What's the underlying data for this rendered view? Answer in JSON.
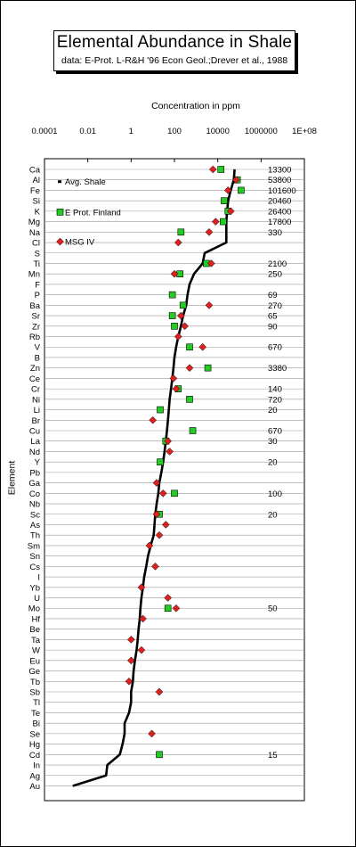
{
  "header": {
    "title": "Elemental  Abundance in Shale",
    "subtitle": "data:  E-Prot. L-R&H '96 Econ Geol.;Drever et al., 1988"
  },
  "chart_data": {
    "type": "scatter",
    "title": "Elemental  Abundance in Shale",
    "subtitle": "data:  E-Prot. L-R&H '96 Econ Geol.;Drever et al., 1988",
    "xlabel": "Concentration in ppm",
    "ylabel": "Element",
    "x_scale": "log",
    "xlim": [
      0.0001,
      100000000
    ],
    "x_ticks": [
      "0.0001",
      "0.01",
      "1",
      "100",
      "10000",
      "1000000",
      "1E+08"
    ],
    "grid": true,
    "legend_position": "top-left",
    "categories": [
      "Ca",
      "Al",
      "Fe",
      "Si",
      "K",
      "Mg",
      "Na",
      "Cl",
      "S",
      "Ti",
      "Mn",
      "F",
      "P",
      "Ba",
      "Sr",
      "Zr",
      "Rb",
      "V",
      "B",
      "Zn",
      "Ce",
      "Cr",
      "Ni",
      "Li",
      "Br",
      "Cu",
      "La",
      "Nd",
      "Y",
      "Pb",
      "Ga",
      "Co",
      "Nb",
      "Sc",
      "As",
      "Th",
      "Sm",
      "Sn",
      "Cs",
      "I",
      "Yb",
      "U",
      "Mo",
      "Hf",
      "Be",
      "Ta",
      "W",
      "Eu",
      "Ge",
      "Tb",
      "Sb",
      "Tl",
      "Te",
      "Bi",
      "Se",
      "Hg",
      "Cd",
      "In",
      "Ag",
      "Au"
    ],
    "series": [
      {
        "name": "Avg. Shale",
        "marker": "line",
        "color": "#000000",
        "points": [
          [
            "Ca",
            60000
          ],
          [
            "Al",
            55000
          ],
          [
            "Fe",
            40000
          ],
          [
            "Si",
            30000
          ],
          [
            "K",
            27000
          ],
          [
            "Mg",
            25000
          ],
          [
            "Na",
            25000
          ],
          [
            "Cl",
            25000
          ],
          [
            "S",
            2500
          ],
          [
            "Ti",
            2000
          ],
          [
            "Mn",
            800
          ],
          [
            "F",
            500
          ],
          [
            "P",
            400
          ],
          [
            "Ba",
            350
          ],
          [
            "Sr",
            250
          ],
          [
            "Zr",
            200
          ],
          [
            "Rb",
            150
          ],
          [
            "V",
            120
          ],
          [
            "B",
            100
          ],
          [
            "Zn",
            90
          ],
          [
            "Ce",
            80
          ],
          [
            "Cr",
            70
          ],
          [
            "Ni",
            60
          ],
          [
            "Li",
            55
          ],
          [
            "Br",
            50
          ],
          [
            "Cu",
            45
          ],
          [
            "La",
            40
          ],
          [
            "Nd",
            35
          ],
          [
            "Y",
            30
          ],
          [
            "Pb",
            25
          ],
          [
            "Ga",
            20
          ],
          [
            "Co",
            18
          ],
          [
            "Nb",
            15
          ],
          [
            "Sc",
            13
          ],
          [
            "As",
            12
          ],
          [
            "Th",
            11
          ],
          [
            "Sm",
            8
          ],
          [
            "Sn",
            6
          ],
          [
            "Cs",
            5
          ],
          [
            "I",
            4
          ],
          [
            "Yb",
            3.5
          ],
          [
            "U",
            3
          ],
          [
            "Mo",
            2.7
          ],
          [
            "Hf",
            2.5
          ],
          [
            "Be",
            2.2
          ],
          [
            "Ta",
            2
          ],
          [
            "W",
            1.8
          ],
          [
            "Eu",
            1.5
          ],
          [
            "Ge",
            1.3
          ],
          [
            "Tb",
            1.2
          ],
          [
            "Sb",
            1
          ],
          [
            "Tl",
            1
          ],
          [
            "Te",
            0.8
          ],
          [
            "Bi",
            0.5
          ],
          [
            "Se",
            0.5
          ],
          [
            "Hg",
            0.4
          ],
          [
            "Cd",
            0.3
          ],
          [
            "In",
            0.08
          ],
          [
            "Ag",
            0.07
          ],
          [
            "Au",
            0.002
          ]
        ]
      },
      {
        "name": "E Prot. Finland",
        "marker": "square",
        "color": "#22cc22",
        "points": [
          [
            "Ca",
            14000
          ],
          [
            "Al",
            80000
          ],
          [
            "Fe",
            120000
          ],
          [
            "Si",
            20000
          ],
          [
            "K",
            30000
          ],
          [
            "Mg",
            18000
          ],
          [
            "Na",
            200
          ],
          [
            "Ti",
            3000
          ],
          [
            "Mn",
            180
          ],
          [
            "P",
            80
          ],
          [
            "Ba",
            250
          ],
          [
            "Sr",
            80
          ],
          [
            "Zr",
            100
          ],
          [
            "V",
            500
          ],
          [
            "Zn",
            3500
          ],
          [
            "Cr",
            150
          ],
          [
            "Ni",
            500
          ],
          [
            "Li",
            22
          ],
          [
            "Cu",
            700
          ],
          [
            "La",
            40
          ],
          [
            "Y",
            22
          ],
          [
            "Co",
            100
          ],
          [
            "Sc",
            20
          ],
          [
            "Mo",
            50
          ],
          [
            "Cd",
            20
          ]
        ]
      },
      {
        "name": "MSG IV",
        "marker": "circle",
        "color": "#e02020",
        "points": [
          [
            "Ca",
            6000
          ],
          [
            "Al",
            70000
          ],
          [
            "Fe",
            30000
          ],
          [
            "K",
            40000
          ],
          [
            "Mg",
            8000
          ],
          [
            "Na",
            4000
          ],
          [
            "Cl",
            150
          ],
          [
            "Ti",
            5000
          ],
          [
            "Mn",
            100
          ],
          [
            "Ba",
            4000
          ],
          [
            "Sr",
            200
          ],
          [
            "Zr",
            300
          ],
          [
            "Rb",
            150
          ],
          [
            "V",
            2000
          ],
          [
            "Zn",
            500
          ],
          [
            "Ce",
            90
          ],
          [
            "Cr",
            120
          ],
          [
            "Br",
            10
          ],
          [
            "La",
            50
          ],
          [
            "Nd",
            60
          ],
          [
            "Ga",
            15
          ],
          [
            "Co",
            30
          ],
          [
            "Sc",
            15
          ],
          [
            "As",
            40
          ],
          [
            "Th",
            20
          ],
          [
            "Sm",
            7
          ],
          [
            "Cs",
            13
          ],
          [
            "Yb",
            3
          ],
          [
            "U",
            50
          ],
          [
            "Mo",
            120
          ],
          [
            "Hf",
            3.5
          ],
          [
            "Ta",
            1
          ],
          [
            "W",
            3
          ],
          [
            "Eu",
            1
          ],
          [
            "Tb",
            0.8
          ],
          [
            "Sb",
            20
          ],
          [
            "Se",
            9
          ]
        ]
      }
    ],
    "annotations": [
      {
        "element": "Ca",
        "text": "13300"
      },
      {
        "element": "Al",
        "text": "53800"
      },
      {
        "element": "Fe",
        "text": "101600"
      },
      {
        "element": "Si",
        "text": "20460"
      },
      {
        "element": "K",
        "text": "26400"
      },
      {
        "element": "Mg",
        "text": "17800"
      },
      {
        "element": "Na",
        "text": "330"
      },
      {
        "element": "Ti",
        "text": "2100"
      },
      {
        "element": "Mn",
        "text": "250"
      },
      {
        "element": "P",
        "text": "69"
      },
      {
        "element": "Ba",
        "text": "270"
      },
      {
        "element": "Sr",
        "text": "65"
      },
      {
        "element": "Zr",
        "text": "90"
      },
      {
        "element": "V",
        "text": "670"
      },
      {
        "element": "Zn",
        "text": "3380"
      },
      {
        "element": "Cr",
        "text": "140"
      },
      {
        "element": "Ni",
        "text": "720"
      },
      {
        "element": "Li",
        "text": "20"
      },
      {
        "element": "Cu",
        "text": "670"
      },
      {
        "element": "La",
        "text": "30"
      },
      {
        "element": "Y",
        "text": "20"
      },
      {
        "element": "Co",
        "text": "100"
      },
      {
        "element": "Sc",
        "text": "20"
      },
      {
        "element": "Mo",
        "text": "50"
      },
      {
        "element": "Cd",
        "text": "15"
      }
    ]
  }
}
